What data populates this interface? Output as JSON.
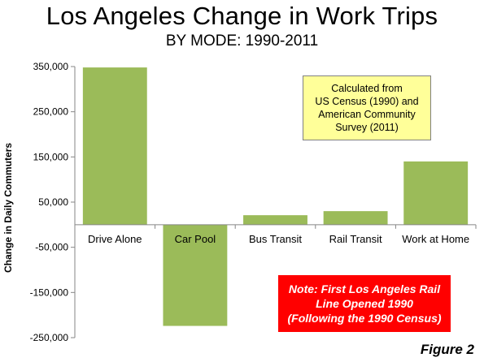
{
  "page": {
    "title": "Los Angeles Change in Work Trips",
    "subtitle": "BY MODE: 1990-2011",
    "figure_label": "Figure 2"
  },
  "notes": {
    "source_lines": [
      "Calculated from",
      "US Census (1990) and",
      "American Community",
      "Survey (2011)"
    ],
    "rail_lines": [
      "Note: First Los Angeles Rail",
      "Line Opened 1990",
      "(Following the 1990 Census)"
    ]
  },
  "chart_data": {
    "type": "bar",
    "title": "Los Angeles Change in Work Trips",
    "subtitle": "BY MODE: 1990-2011",
    "xlabel": "",
    "ylabel": "Change in Daily Commuters",
    "categories": [
      "Drive Alone",
      "Car Pool",
      "Bus Transit",
      "Rail Transit",
      "Work at Home"
    ],
    "values": [
      348000,
      -224000,
      21000,
      30000,
      140000
    ],
    "ylim": [
      -250000,
      350000
    ],
    "yticks": [
      350000,
      250000,
      150000,
      50000,
      -50000,
      -150000,
      -250000
    ],
    "ytick_labels": [
      "350,000",
      "250,000",
      "150,000",
      "50,000",
      "-50,000",
      "-150,000",
      "-250,000"
    ],
    "grid": false,
    "legend": "none",
    "bar_color": "#9bbb59"
  }
}
